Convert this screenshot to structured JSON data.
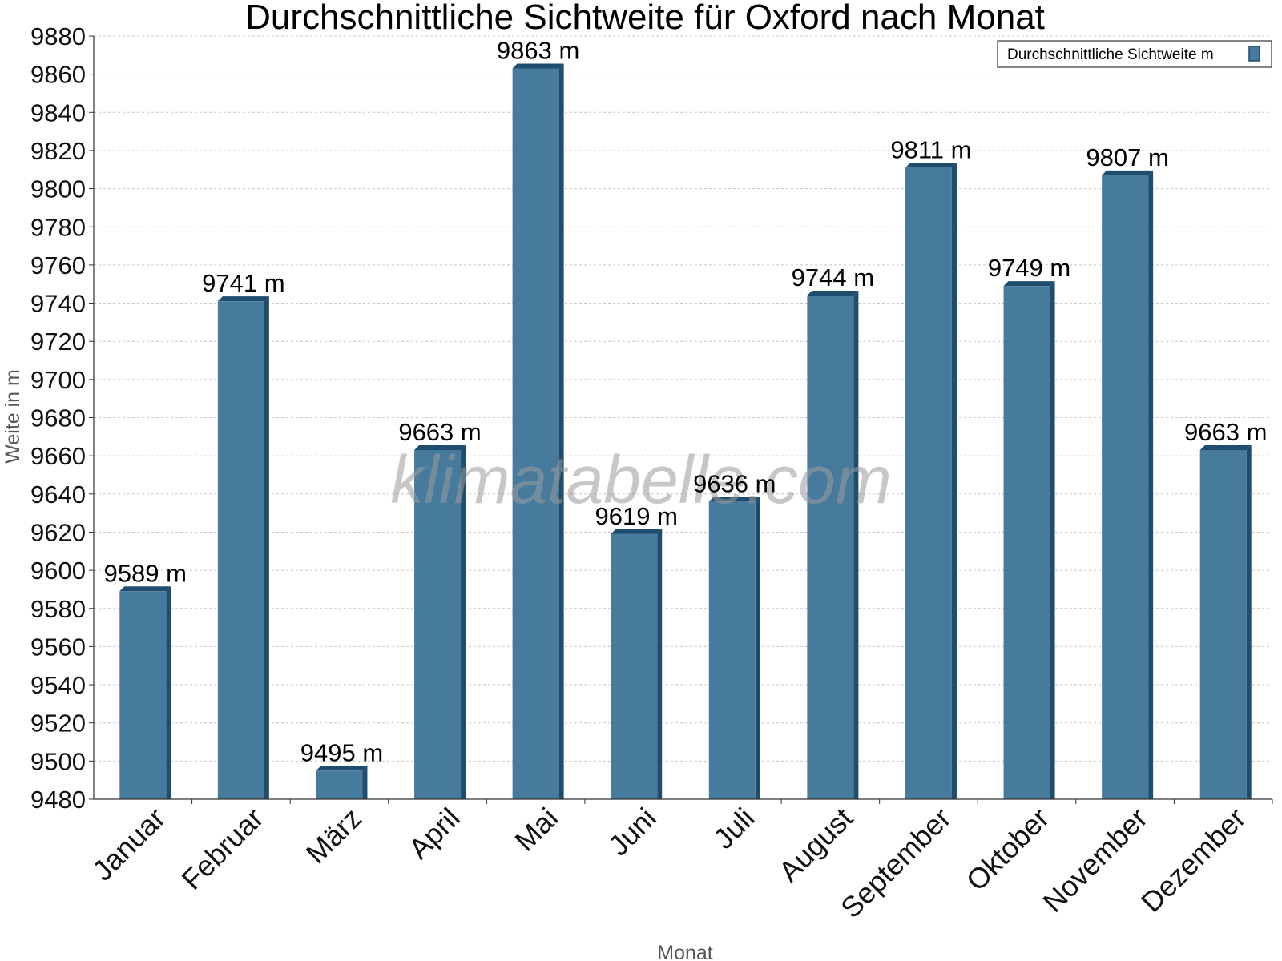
{
  "chart_data": {
    "type": "bar",
    "title": "Durchschnittliche Sichtweite für Oxford nach Monat",
    "xlabel": "Monat",
    "ylabel": "Weite in m",
    "categories": [
      "Januar",
      "Februar",
      "März",
      "April",
      "Mai",
      "Juni",
      "Juli",
      "August",
      "September",
      "Oktober",
      "November",
      "Dezember"
    ],
    "series": [
      {
        "name": "Durchschnittliche Sichtweite m",
        "values": [
          9589,
          9741,
          9495,
          9663,
          9863,
          9619,
          9636,
          9744,
          9811,
          9749,
          9807,
          9663
        ],
        "labels": [
          "9589 m",
          "9741 m",
          "9495 m",
          "9663 m",
          "9863 m",
          "9619 m",
          "9636 m",
          "9744 m",
          "9811 m",
          "9749 m",
          "9807 m",
          "9663 m"
        ]
      }
    ],
    "ylim": [
      9480,
      9880
    ],
    "yticks": [
      "9480",
      "9500",
      "9520",
      "9540",
      "9560",
      "9580",
      "9600",
      "9620",
      "9640",
      "9660",
      "9680",
      "9700",
      "9720",
      "9740",
      "9760",
      "9780",
      "9800",
      "9820",
      "9840",
      "9860",
      "9880"
    ],
    "grid": true,
    "legend_position": "top-right",
    "colors": {
      "bar": "#467b9e",
      "bar_side": "#1f4d6e",
      "bar_top": "#5a8fb2",
      "grid": "#c8c8c8"
    }
  },
  "watermark": "klimatabelle.com"
}
